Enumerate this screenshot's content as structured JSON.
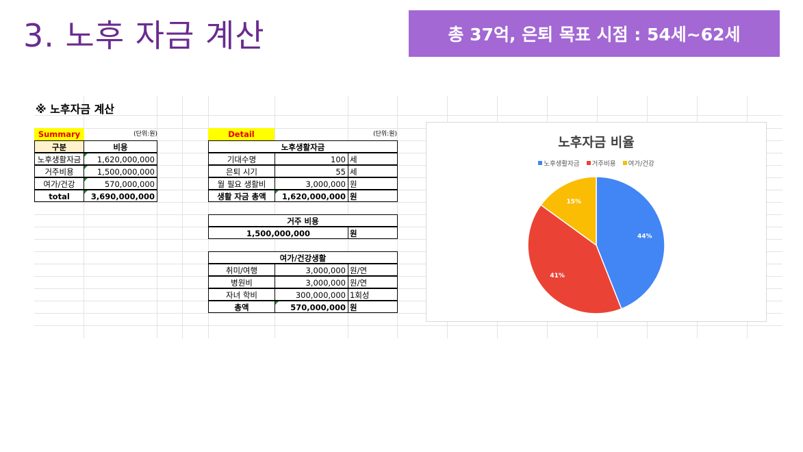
{
  "slide": {
    "title": "3. 노후 자금 계산",
    "banner": "총 37억, 은퇴 목표 시점 : 54세~62세"
  },
  "sheet": {
    "title": "※ 노후자금 계산",
    "summary": {
      "label": "Summary",
      "unit": "(단위:원)",
      "headers": [
        "구분",
        "비용"
      ],
      "rows": [
        {
          "name": "노후생활자금",
          "value": "1,620,000,000"
        },
        {
          "name": "거주비용",
          "value": "1,500,000,000"
        },
        {
          "name": "여가/건강",
          "value": "570,000,000"
        }
      ],
      "total": {
        "name": "total",
        "value": "3,690,000,000"
      }
    },
    "detail": {
      "label": "Detail",
      "unit": "(단위:원)",
      "living": {
        "header": "노후생활자금",
        "rows": [
          {
            "name": "기대수명",
            "value": "100",
            "unit": "세"
          },
          {
            "name": "은퇴 시기",
            "value": "55",
            "unit": "세"
          },
          {
            "name": "월 필요 생활비",
            "value": "3,000,000",
            "unit": "원"
          }
        ],
        "total": {
          "name": "생활 자금 총액",
          "value": "1,620,000,000",
          "unit": "원"
        }
      },
      "housing": {
        "header": "거주 비용",
        "value": "1,500,000,000",
        "unit": "원"
      },
      "leisure": {
        "header": "여가/건강생활",
        "rows": [
          {
            "name": "취미/여행",
            "value": "3,000,000",
            "unit": "원/연"
          },
          {
            "name": "병원비",
            "value": "3,000,000",
            "unit": "원/연"
          },
          {
            "name": "자녀 학비",
            "value": "300,000,000",
            "unit": "1회성"
          }
        ],
        "total": {
          "name": "총액",
          "value": "570,000,000",
          "unit": "원"
        }
      }
    }
  },
  "chart_data": {
    "type": "pie",
    "title": "노후자금 비율",
    "categories": [
      "노후생활자금",
      "거주비용",
      "여가/건강"
    ],
    "values": [
      44,
      41,
      15
    ],
    "labels": [
      "44%",
      "41%",
      "15%"
    ],
    "colors": [
      "#4285f4",
      "#ea4335",
      "#fbbc04"
    ],
    "legend": "top"
  }
}
